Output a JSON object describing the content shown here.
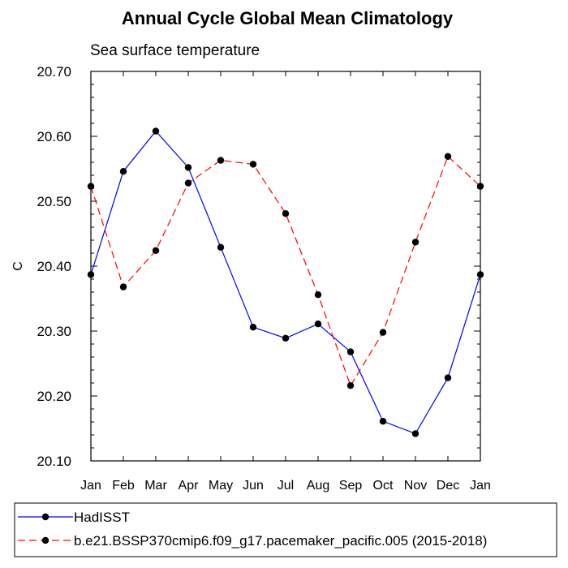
{
  "chart_data": {
    "type": "line",
    "title": "Annual Cycle Global Mean Climatology",
    "subtitle": "Sea surface temperature",
    "ylabel": "C",
    "xlabel": "",
    "categories": [
      "Jan",
      "Feb",
      "Mar",
      "Apr",
      "May",
      "Jun",
      "Jul",
      "Aug",
      "Sep",
      "Oct",
      "Nov",
      "Dec",
      "Jan"
    ],
    "ylim": [
      20.1,
      20.7
    ],
    "yticks": [
      "20.10",
      "20.20",
      "20.30",
      "20.40",
      "20.50",
      "20.60",
      "20.70"
    ],
    "legend_position": "bottom",
    "series": [
      {
        "name": "HadISST",
        "color": "#0000ff",
        "dash": "solid",
        "values": [
          20.387,
          20.546,
          20.608,
          20.552,
          20.429,
          20.306,
          20.289,
          20.311,
          20.268,
          20.161,
          20.142,
          20.228,
          20.387
        ]
      },
      {
        "name": "b.e21.BSSP370cmip6.f09_g17.pacemaker_pacific.005 (2015-2018)",
        "color": "#ff0000",
        "dash": "dashed",
        "values": [
          20.523,
          20.368,
          20.424,
          20.528,
          20.563,
          20.557,
          20.481,
          20.356,
          20.216,
          20.298,
          20.437,
          20.569,
          20.523
        ]
      }
    ]
  }
}
